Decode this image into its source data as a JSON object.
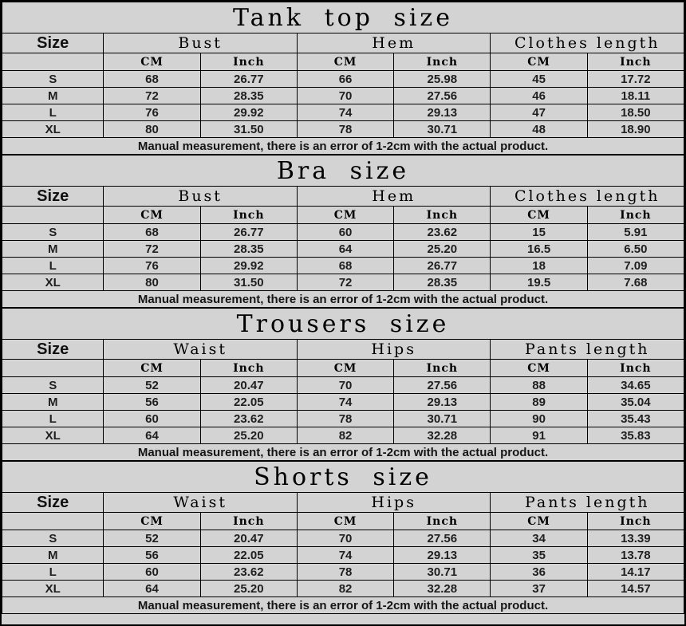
{
  "size_header": "Size",
  "unit_cm": "CM",
  "unit_inch": "Inch",
  "note": "Manual measurement, there is an error of 1-2cm with the actual product.",
  "colors": {
    "background": "#d3d3d3",
    "grid_border": "#000000",
    "text": "#1b1b1b"
  },
  "tables": [
    {
      "title": "Tank top size",
      "columns": [
        "Bust",
        "Hem",
        "Clothes length"
      ],
      "rows": [
        {
          "size": "S",
          "values": [
            "68",
            "26.77",
            "66",
            "25.98",
            "45",
            "17.72"
          ]
        },
        {
          "size": "M",
          "values": [
            "72",
            "28.35",
            "70",
            "27.56",
            "46",
            "18.11"
          ]
        },
        {
          "size": "L",
          "values": [
            "76",
            "29.92",
            "74",
            "29.13",
            "47",
            "18.50"
          ]
        },
        {
          "size": "XL",
          "values": [
            "80",
            "31.50",
            "78",
            "30.71",
            "48",
            "18.90"
          ]
        }
      ]
    },
    {
      "title": "Bra size",
      "columns": [
        "Bust",
        "Hem",
        "Clothes length"
      ],
      "rows": [
        {
          "size": "S",
          "values": [
            "68",
            "26.77",
            "60",
            "23.62",
            "15",
            "5.91"
          ]
        },
        {
          "size": "M",
          "values": [
            "72",
            "28.35",
            "64",
            "25.20",
            "16.5",
            "6.50"
          ]
        },
        {
          "size": "L",
          "values": [
            "76",
            "29.92",
            "68",
            "26.77",
            "18",
            "7.09"
          ]
        },
        {
          "size": "XL",
          "values": [
            "80",
            "31.50",
            "72",
            "28.35",
            "19.5",
            "7.68"
          ]
        }
      ]
    },
    {
      "title": "Trousers size",
      "columns": [
        "Waist",
        "Hips",
        "Pants length"
      ],
      "rows": [
        {
          "size": "S",
          "values": [
            "52",
            "20.47",
            "70",
            "27.56",
            "88",
            "34.65"
          ]
        },
        {
          "size": "M",
          "values": [
            "56",
            "22.05",
            "74",
            "29.13",
            "89",
            "35.04"
          ]
        },
        {
          "size": "L",
          "values": [
            "60",
            "23.62",
            "78",
            "30.71",
            "90",
            "35.43"
          ]
        },
        {
          "size": "XL",
          "values": [
            "64",
            "25.20",
            "82",
            "32.28",
            "91",
            "35.83"
          ]
        }
      ]
    },
    {
      "title": "Shorts size",
      "columns": [
        "Waist",
        "Hips",
        "Pants length"
      ],
      "rows": [
        {
          "size": "S",
          "values": [
            "52",
            "20.47",
            "70",
            "27.56",
            "34",
            "13.39"
          ]
        },
        {
          "size": "M",
          "values": [
            "56",
            "22.05",
            "74",
            "29.13",
            "35",
            "13.78"
          ]
        },
        {
          "size": "L",
          "values": [
            "60",
            "23.62",
            "78",
            "30.71",
            "36",
            "14.17"
          ]
        },
        {
          "size": "XL",
          "values": [
            "64",
            "25.20",
            "82",
            "32.28",
            "37",
            "14.57"
          ]
        }
      ]
    }
  ]
}
